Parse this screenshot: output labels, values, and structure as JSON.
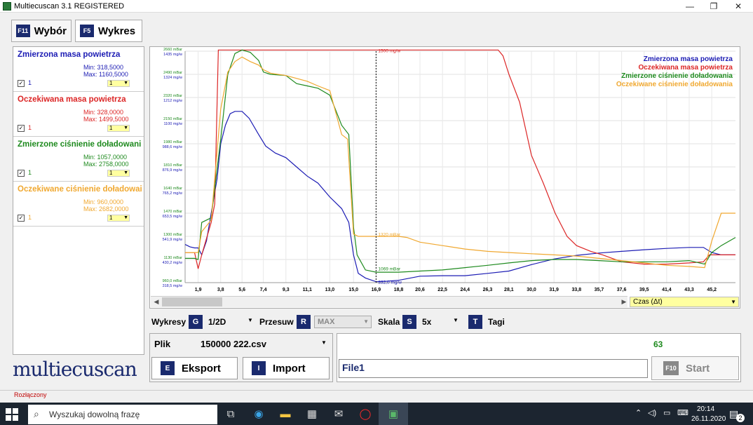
{
  "window": {
    "title": "Multiecuscan 3.1 REGISTERED",
    "minimize": "—",
    "maximize": "❐",
    "close": "✕"
  },
  "tabs": [
    {
      "key": "F11",
      "label": "Wybór"
    },
    {
      "key": "F5",
      "label": "Wykres"
    }
  ],
  "series": [
    {
      "name": "Zmierzona masa powietrza",
      "min": "Min: 318,5000",
      "max": "Max: 1160,5000",
      "num": "1",
      "drop": "1",
      "color": "#1c1cb4"
    },
    {
      "name": "Oczekiwana masa powietrza",
      "min": "Min: 328,0000",
      "max": "Max: 1499,5000",
      "num": "1",
      "drop": "1",
      "color": "#dc2626"
    },
    {
      "name": "Zmierzone ciśnienie doładowani",
      "min": "Min: 1057,0000",
      "max": "Max: 2758,0000",
      "num": "1",
      "drop": "1",
      "color": "#1e8a1e"
    },
    {
      "name": "Oczekiwane ciśnienie doładowai",
      "min": "Min: 960,0000",
      "max": "Max: 2682,0000",
      "num": "1",
      "drop": "1",
      "color": "#f0a830"
    }
  ],
  "chart_data": {
    "type": "line",
    "legend": [
      "Zmierzona masa powietrza",
      "Oczekiwana masa powietrza",
      "Zmierzone ciśnienie doładowania",
      "Oczekiwane ciśnienie doładowania"
    ],
    "legend_colors": [
      "#1c1cb4",
      "#dc2626",
      "#1e8a1e",
      "#f0a830"
    ],
    "xticks": [
      "1,9",
      "3,8",
      "5,6",
      "7,4",
      "9,3",
      "11,1",
      "13,0",
      "15,0",
      "16,9",
      "18,8",
      "20,6",
      "22,5",
      "24,4",
      "26,3",
      "28,1",
      "30,0",
      "31,9",
      "33,8",
      "35,7",
      "37,6",
      "39,5",
      "41,4",
      "43,3",
      "45,2"
    ],
    "xlim": [
      0.8,
      47.2
    ],
    "yticks": [
      [
        "2660 mBar",
        "1435 mg/w"
      ],
      [
        "2490 mBar",
        "1324 mg/w"
      ],
      [
        "2320 mBar",
        "1212 mg/w"
      ],
      [
        "2150 mBar",
        "1100 mg/w"
      ],
      [
        "1980 mBar",
        "988,6 mg/w"
      ],
      [
        "1810 mBar",
        "876,9 mg/w"
      ],
      [
        "1640 mBar",
        "765,2 mg/w"
      ],
      [
        "1470 mBar",
        "653,5 mg/w"
      ],
      [
        "1300 mBar",
        "541,9 mg/w"
      ],
      [
        "1130 mBar",
        "430,2 mg/w"
      ],
      [
        "960,0 mBar",
        "318,5 mg/w"
      ]
    ],
    "ylim": [
      0,
      10
    ],
    "cursor_x": 16.9,
    "cursor_labels": [
      {
        "text": "1500 mg/w",
        "y": 10.04,
        "color": "#dc2626"
      },
      {
        "text": "1320 mBar",
        "y": 2.1,
        "color": "#f0a830"
      },
      {
        "text": "1069 mBar",
        "y": 0.62,
        "color": "#1e8a1e"
      },
      {
        "text": "332,0 mg/w",
        "y": 0.04,
        "color": "#1c1cb4"
      }
    ],
    "series": [
      {
        "name": "Zmierzona masa powietrza",
        "color": "#1c1cb4",
        "x": [
          0.8,
          1.0,
          1.2,
          1.6,
          1.9,
          2.2,
          2.6,
          3.0,
          3.5,
          3.8,
          4.2,
          4.6,
          5.0,
          5.6,
          6.2,
          7.0,
          7.6,
          8.4,
          9.3,
          10.2,
          11.1,
          12.0,
          13.0,
          14.0,
          14.6,
          15.0,
          15.4,
          16.0,
          16.9,
          17.8,
          18.8,
          20.6,
          22.5,
          24.4,
          26.3,
          28.1,
          30.0,
          31.9,
          33.8,
          35.7,
          37.6,
          39.5,
          41.4,
          43.3,
          44.5,
          45.2,
          46.0,
          47.2
        ],
        "y": [
          1.65,
          1.6,
          1.55,
          1.5,
          1.5,
          1.2,
          1.8,
          3.0,
          4.5,
          6.0,
          6.8,
          7.3,
          7.4,
          7.4,
          7.1,
          6.4,
          5.9,
          5.6,
          5.4,
          5.0,
          4.6,
          4.3,
          3.7,
          3.2,
          2.6,
          1.2,
          0.4,
          0.2,
          0.04,
          0.06,
          0.1,
          0.28,
          0.3,
          0.3,
          0.4,
          0.5,
          0.78,
          1.02,
          1.18,
          1.28,
          1.35,
          1.42,
          1.48,
          1.52,
          1.52,
          1.3,
          1.2,
          1.2
        ]
      },
      {
        "name": "Oczekiwana masa powietrza",
        "color": "#dc2626",
        "x": [
          0.8,
          1.6,
          1.9,
          2.2,
          3.0,
          3.3,
          3.6,
          3.8,
          4.5,
          5.6,
          7.4,
          10.0,
          13.0,
          15.0,
          16.9,
          18.8,
          22.5,
          26.3,
          27.2,
          27.6,
          28.1,
          29.0,
          30.0,
          31.0,
          32.0,
          33.0,
          33.8,
          35.0,
          36.0,
          37.6,
          39.5,
          41.4,
          43.3,
          44.5,
          45.0,
          46.0,
          47.2
        ],
        "y": [
          1.3,
          1.3,
          0.6,
          1.2,
          2.6,
          3.4,
          10.05,
          10.05,
          10.05,
          10.05,
          10.05,
          10.05,
          10.05,
          10.05,
          10.05,
          10.05,
          10.05,
          10.05,
          10.05,
          9.8,
          9.0,
          7.8,
          5.5,
          4.3,
          3.0,
          2.0,
          1.6,
          1.35,
          1.2,
          0.9,
          0.8,
          0.8,
          0.85,
          0.9,
          1.2,
          1.2,
          1.2
        ]
      },
      {
        "name": "Zmierzone ciśnienie doładowania",
        "color": "#1e8a1e",
        "x": [
          0.8,
          1.6,
          1.9,
          2.2,
          3.0,
          3.8,
          4.4,
          5.0,
          5.6,
          6.3,
          7.0,
          7.4,
          8.0,
          9.3,
          10.2,
          11.1,
          12.0,
          13.0,
          14.0,
          14.6,
          15.0,
          15.3,
          16.0,
          16.9,
          17.8,
          18.8,
          20.6,
          22.5,
          24.4,
          26.3,
          28.1,
          30.0,
          31.9,
          33.8,
          35.7,
          37.6,
          39.5,
          41.4,
          43.3,
          44.6,
          45.2,
          46.0,
          47.2
        ],
        "y": [
          1.05,
          1.05,
          1.0,
          2.6,
          2.8,
          6.2,
          9.0,
          9.9,
          10.05,
          9.95,
          9.6,
          9.1,
          9.0,
          8.95,
          8.6,
          8.5,
          8.4,
          8.1,
          6.8,
          6.4,
          2.4,
          1.2,
          0.55,
          0.45,
          0.45,
          0.45,
          0.5,
          0.55,
          0.65,
          0.75,
          0.85,
          0.95,
          1.0,
          1.0,
          0.95,
          0.9,
          0.9,
          0.9,
          0.95,
          0.8,
          1.3,
          1.6,
          1.95
        ]
      },
      {
        "name": "Oczekiwane ciśnienie doładowania",
        "color": "#f0a830",
        "x": [
          0.8,
          1.6,
          1.9,
          2.2,
          3.0,
          3.8,
          4.4,
          5.0,
          5.6,
          6.3,
          7.0,
          7.4,
          8.0,
          9.3,
          11.1,
          12.0,
          13.0,
          14.0,
          14.5,
          15.0,
          15.4,
          16.0,
          16.9,
          18.8,
          19.5,
          20.6,
          22.5,
          24.4,
          26.3,
          28.1,
          30.0,
          31.9,
          33.8,
          35.7,
          37.6,
          39.5,
          41.4,
          43.3,
          44.6,
          45.2,
          46.0,
          47.2
        ],
        "y": [
          1.3,
          1.3,
          1.3,
          2.2,
          2.7,
          7.5,
          9.1,
          9.55,
          9.75,
          9.55,
          9.4,
          9.2,
          9.05,
          8.95,
          8.7,
          8.5,
          8.3,
          6.4,
          6.2,
          2.1,
          2.0,
          2.0,
          2.0,
          2.0,
          1.95,
          1.75,
          1.6,
          1.45,
          1.35,
          1.3,
          1.25,
          1.2,
          1.15,
          1.05,
          0.95,
          0.85,
          0.75,
          0.7,
          0.65,
          1.8,
          3.0,
          3.0
        ]
      }
    ]
  },
  "timeSelect": {
    "label": "Czas (Δt)"
  },
  "controls": {
    "wykresy_label": "Wykresy",
    "wykresy_key": "G",
    "wykresy_value": "1/2D",
    "przesuw_label": "Przesuw",
    "przesuw_key": "R",
    "przesuw_value": "MAX",
    "skala_label": "Skala",
    "skala_key": "S",
    "skala_value": "5x",
    "tagi_key": "T",
    "tagi_label": "Tagi"
  },
  "file": {
    "label": "Plik",
    "name": "150000 222.csv"
  },
  "buttons": {
    "eksport_key": "E",
    "eksport": "Eksport",
    "import_key": "I",
    "import": "Import",
    "start_key": "F10",
    "start": "Start"
  },
  "counter": "63",
  "file_text": "File1",
  "logo": "multiecuscan",
  "status": "Rozłączony",
  "taskbar": {
    "search_placeholder": "Wyszukaj dowolną frazę",
    "time": "20:14",
    "date": "26.11.2020",
    "badge": "2"
  }
}
